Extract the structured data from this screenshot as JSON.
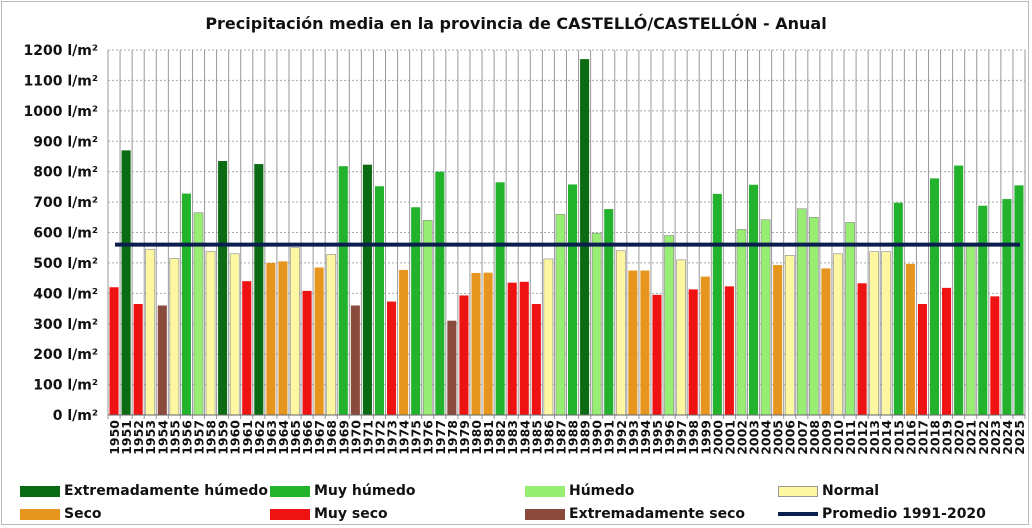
{
  "chart_data": {
    "type": "bar",
    "title": "Precipitación media en la provincia de CASTELLÓ/CASTELLÓN - Anual",
    "xlabel": "",
    "ylabel": "",
    "ylim": [
      0,
      1200
    ],
    "yticks": [
      0,
      100,
      200,
      300,
      400,
      500,
      600,
      700,
      800,
      900,
      1000,
      1100,
      1200
    ],
    "ytick_labels": [
      "0 l/m²",
      "100 l/m²",
      "200 l/m²",
      "300 l/m²",
      "400 l/m²",
      "500 l/m²",
      "600 l/m²",
      "700 l/m²",
      "800 l/m²",
      "900 l/m²",
      "1000 l/m²",
      "1100 l/m²",
      "1200 l/m²"
    ],
    "grid": true,
    "categories": [
      "1950",
      "1951",
      "1952",
      "1953",
      "1954",
      "1955",
      "1956",
      "1957",
      "1958",
      "1959",
      "1960",
      "1961",
      "1962",
      "1963",
      "1964",
      "1965",
      "1966",
      "1967",
      "1968",
      "1969",
      "1970",
      "1971",
      "1972",
      "1973",
      "1974",
      "1975",
      "1976",
      "1977",
      "1978",
      "1979",
      "1980",
      "1981",
      "1982",
      "1983",
      "1984",
      "1985",
      "1986",
      "1987",
      "1988",
      "1989",
      "1990",
      "1991",
      "1992",
      "1993",
      "1994",
      "1995",
      "1996",
      "1997",
      "1998",
      "1999",
      "2000",
      "2001",
      "2002",
      "2003",
      "2004",
      "2005",
      "2006",
      "2007",
      "2008",
      "2009",
      "2010",
      "2011",
      "2012",
      "2013",
      "2014",
      "2015",
      "2016",
      "2017",
      "2018",
      "2019",
      "2020",
      "2021",
      "2022",
      "2023",
      "2024",
      "2025"
    ],
    "values": [
      420,
      870,
      365,
      545,
      360,
      515,
      728,
      665,
      538,
      835,
      530,
      440,
      825,
      500,
      505,
      550,
      408,
      485,
      528,
      818,
      360,
      823,
      752,
      373,
      477,
      683,
      640,
      800,
      310,
      393,
      467,
      468,
      765,
      435,
      438,
      365,
      513,
      660,
      758,
      1170,
      598,
      677,
      540,
      475,
      475,
      395,
      590,
      510,
      413,
      455,
      727,
      423,
      610,
      757,
      642,
      493,
      525,
      678,
      650,
      482,
      530,
      633,
      433,
      537,
      537,
      698,
      497,
      365,
      778,
      418,
      820,
      560,
      688,
      390,
      710,
      755
    ],
    "classes": [
      "ms",
      "eh",
      "ms",
      "n",
      "es",
      "n",
      "mh",
      "h",
      "n",
      "eh",
      "n",
      "ms",
      "eh",
      "s",
      "s",
      "n",
      "ms",
      "s",
      "n",
      "mh",
      "es",
      "eh",
      "mh",
      "ms",
      "s",
      "mh",
      "h",
      "mh",
      "es",
      "ms",
      "s",
      "s",
      "mh",
      "ms",
      "ms",
      "ms",
      "n",
      "h",
      "mh",
      "eh",
      "h",
      "mh",
      "n",
      "s",
      "s",
      "ms",
      "h",
      "n",
      "ms",
      "s",
      "mh",
      "ms",
      "h",
      "mh",
      "h",
      "s",
      "n",
      "h",
      "h",
      "s",
      "n",
      "h",
      "ms",
      "n",
      "n",
      "mh",
      "s",
      "ms",
      "mh",
      "ms",
      "mh",
      "h",
      "mh",
      "ms",
      "mh",
      "mh"
    ],
    "average": {
      "label": "Promedio 1991-2020",
      "value": 560,
      "color": "#0b1f4e"
    },
    "legend_position": "bottom",
    "legend": [
      {
        "key": "eh",
        "label": "Extremadamente húmedo",
        "color": "#0b6b12"
      },
      {
        "key": "mh",
        "label": "Muy húmedo",
        "color": "#23b22c"
      },
      {
        "key": "h",
        "label": "Húmedo",
        "color": "#97ee72"
      },
      {
        "key": "n",
        "label": "Normal",
        "color": "#fdf7a2"
      },
      {
        "key": "s",
        "label": "Seco",
        "color": "#e6951e"
      },
      {
        "key": "ms",
        "label": "Muy seco",
        "color": "#ee1212"
      },
      {
        "key": "es",
        "label": "Extremadamente seco",
        "color": "#8a4a3c"
      }
    ]
  }
}
